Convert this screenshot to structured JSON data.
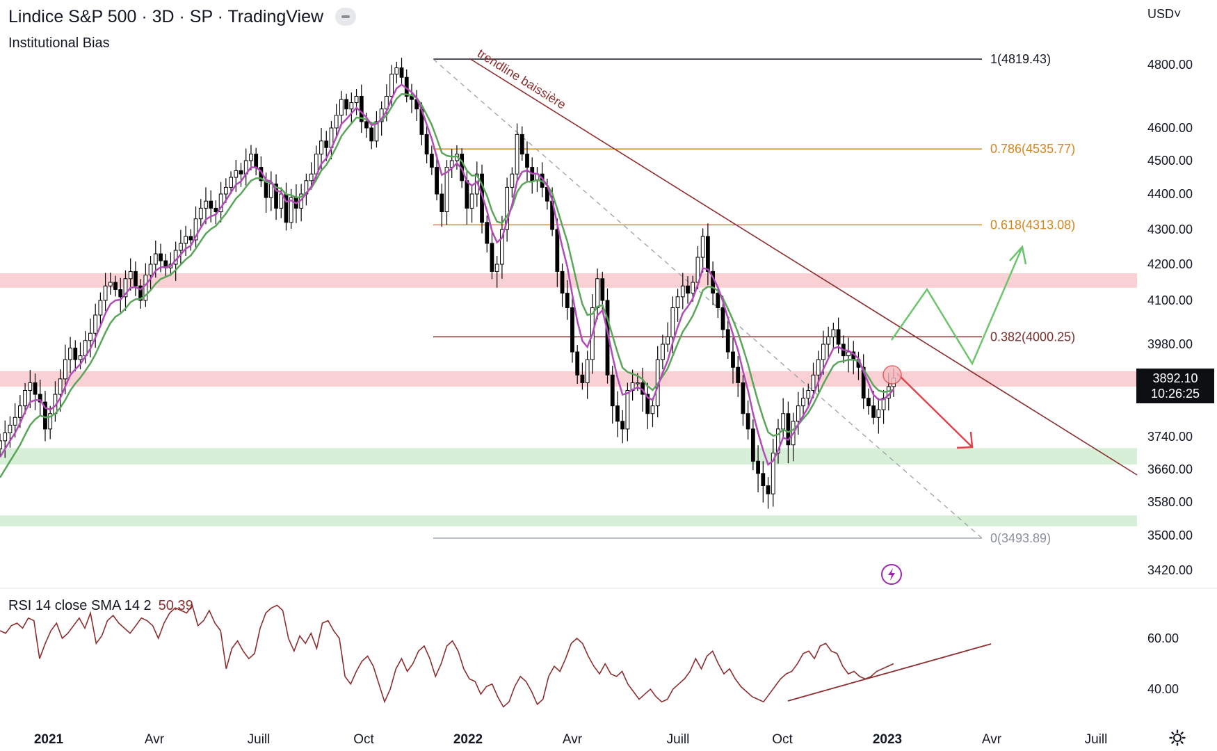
{
  "header": {
    "title": "Lindice S&P 500 · 3D · SP  · TradingView",
    "indicator": "Institutional Bias",
    "currency": "USD˅"
  },
  "rsi_legend": {
    "label": "RSI 14 close SMA 14 2",
    "value": "50.39"
  },
  "price_badge": {
    "price": "3892.10",
    "countdown": "10:26:25"
  },
  "icons": {
    "collapse": "minus-pill-icon",
    "flash": "lightning-icon",
    "settings": "gear-icon"
  },
  "colors": {
    "candle": "#000000",
    "ema_purple": "#b04bb8",
    "ema_green": "#5aa55a",
    "trendline": "#8b2e2e",
    "fib_orange": "#d4871f",
    "fib_0382": "#7a2e2e",
    "resistance_zone": "#f8c9cd",
    "support_zone": "#cfeccf",
    "arrow_up": "#6cc46c",
    "arrow_down": "#e0444c",
    "rsi_line": "#8b2e2e"
  },
  "chart_data": {
    "type": "candlestick",
    "price_axis": {
      "ticks": [
        "4800.00",
        "4600.00",
        "4500.00",
        "4400.00",
        "4300.00",
        "4200.00",
        "4100.00",
        "3980.00",
        "3740.00",
        "3660.00",
        "3580.00",
        "3500.00",
        "3420.00"
      ],
      "tick_values": [
        4800,
        4600,
        4500,
        4400,
        4300,
        4200,
        4100,
        3980,
        3740,
        3660,
        3580,
        3500,
        3420
      ],
      "range": [
        3380,
        4880
      ]
    },
    "rsi_axis": {
      "ticks": [
        "60.00",
        "40.00"
      ],
      "tick_values": [
        60,
        40
      ],
      "range": [
        26,
        76
      ]
    },
    "time_axis": {
      "labels": [
        "2021",
        "Avr",
        "Juill",
        "Oct",
        "2022",
        "Avr",
        "Juill",
        "Oct",
        "2023",
        "Avr",
        "Juill"
      ],
      "bold": [
        true,
        false,
        false,
        false,
        true,
        false,
        false,
        false,
        true,
        false,
        false
      ]
    },
    "fib_levels": [
      {
        "label": "1(4819.43)",
        "value": 4819.43
      },
      {
        "label": "0.786(4535.77)",
        "value": 4535.77
      },
      {
        "label": "0.618(4313.08)",
        "value": 4313.08
      },
      {
        "label": "0.382(4000.25)",
        "value": 4000.25
      },
      {
        "label": "0(3493.89)",
        "value": 3493.89
      }
    ],
    "zones": [
      {
        "kind": "resistance",
        "low": 4135,
        "high": 4175
      },
      {
        "kind": "resistance",
        "low": 3870,
        "high": 3910
      },
      {
        "kind": "support",
        "low": 3672,
        "high": 3712
      },
      {
        "kind": "support",
        "low": 3522,
        "high": 3548
      }
    ],
    "trendline_label": "trendline baissière",
    "candles_close": [
      3730,
      3750,
      3770,
      3790,
      3820,
      3860,
      3880,
      3850,
      3830,
      3760,
      3800,
      3850,
      3890,
      3940,
      3970,
      3940,
      3950,
      3990,
      4010,
      4060,
      4100,
      4140,
      4150,
      4130,
      4110,
      4160,
      4180,
      4140,
      4100,
      4170,
      4200,
      4230,
      4210,
      4190,
      4200,
      4240,
      4260,
      4280,
      4270,
      4330,
      4360,
      4380,
      4360,
      4350,
      4400,
      4420,
      4450,
      4470,
      4460,
      4500,
      4520,
      4480,
      4440,
      4390,
      4430,
      4360,
      4400,
      4320,
      4390,
      4360,
      4400,
      4440,
      4460,
      4520,
      4560,
      4540,
      4600,
      4640,
      4690,
      4660,
      4680,
      4700,
      4620,
      4600,
      4560,
      4620,
      4660,
      4700,
      4770,
      4790,
      4760,
      4700,
      4690,
      4660,
      4580,
      4520,
      4480,
      4400,
      4350,
      4480,
      4500,
      4520,
      4440,
      4360,
      4400,
      4460,
      4320,
      4260,
      4180,
      4200,
      4300,
      4420,
      4460,
      4580,
      4520,
      4480,
      4440,
      4460,
      4420,
      4380,
      4300,
      4180,
      4120,
      4080,
      3960,
      3900,
      3880,
      3940,
      4080,
      4160,
      4100,
      3900,
      3820,
      3780,
      3760,
      3860,
      3880,
      3880,
      3850,
      3800,
      3820,
      3940,
      3980,
      4000,
      4080,
      4110,
      4140,
      4120,
      4150,
      4220,
      4280,
      4180,
      4120,
      4080,
      4020,
      3960,
      3920,
      3880,
      3800,
      3760,
      3680,
      3650,
      3620,
      3600,
      3700,
      3760,
      3800,
      3720,
      3780,
      3820,
      3840,
      3860,
      3900,
      3940,
      3980,
      4000,
      4020,
      3980,
      3950,
      3960,
      3940,
      3920,
      3840,
      3820,
      3790,
      3810,
      3840,
      3870,
      3892
    ],
    "ema_fast": [
      3690,
      3710,
      3730,
      3750,
      3775,
      3805,
      3830,
      3835,
      3835,
      3815,
      3810,
      3820,
      3840,
      3870,
      3900,
      3915,
      3928,
      3948,
      3968,
      3998,
      4030,
      4065,
      4090,
      4100,
      4102,
      4118,
      4135,
      4137,
      4130,
      4143,
      4160,
      4182,
      4192,
      4192,
      4195,
      4212,
      4228,
      4245,
      4253,
      4280,
      4305,
      4328,
      4337,
      4342,
      4362,
      4382,
      4405,
      4428,
      4438,
      4460,
      4480,
      4480,
      4468,
      4442,
      4438,
      4410,
      4406,
      4378,
      4382,
      4374,
      4383,
      4402,
      4422,
      4455,
      4490,
      4507,
      4538,
      4572,
      4612,
      4628,
      4646,
      4664,
      4649,
      4633,
      4609,
      4613,
      4629,
      4653,
      4692,
      4725,
      4737,
      4725,
      4713,
      4695,
      4657,
      4611,
      4567,
      4511,
      4457,
      4465,
      4477,
      4492,
      4475,
      4437,
      4425,
      4437,
      4398,
      4352,
      4295,
      4263,
      4276,
      4324,
      4369,
      4439,
      4466,
      4471,
      4461,
      4461,
      4447,
      4425,
      4383,
      4315,
      4250,
      4193,
      4115,
      4043,
      3989,
      3973,
      4008,
      4059,
      4073,
      4015,
      3950,
      3893,
      3849,
      3853,
      3862,
      3868,
      3862,
      3842,
      3835,
      3870,
      3906,
      3937,
      3985,
      4027,
      4065,
      4083,
      4105,
      4143,
      4189,
      4186,
      4164,
      4136,
      4097,
      4051,
      4007,
      3965,
      3910,
      3860,
      3800,
      3750,
      3707,
      3672,
      3681,
      3707,
      3738,
      3732,
      3748,
      3772,
      3795,
      3817,
      3848,
      3882,
      3915,
      3943,
      3969,
      3973,
      3965,
      3963,
      3955,
      3943,
      3909,
      3879,
      3849,
      3836,
      3837,
      3848,
      3863
    ],
    "ema_slow": [
      3640,
      3660,
      3680,
      3700,
      3720,
      3745,
      3770,
      3785,
      3795,
      3790,
      3792,
      3800,
      3815,
      3835,
      3860,
      3878,
      3893,
      3911,
      3930,
      3954,
      3982,
      4012,
      4038,
      4055,
      4064,
      4078,
      4095,
      4103,
      4104,
      4114,
      4128,
      4146,
      4159,
      4165,
      4171,
      4184,
      4199,
      4214,
      4225,
      4245,
      4267,
      4288,
      4301,
      4310,
      4327,
      4345,
      4366,
      4387,
      4401,
      4421,
      4440,
      4447,
      4447,
      4436,
      4435,
      4420,
      4416,
      4399,
      4397,
      4390,
      4392,
      4404,
      4418,
      4442,
      4470,
      4487,
      4513,
      4542,
      4575,
      4595,
      4614,
      4633,
      4631,
      4627,
      4615,
      4616,
      4624,
      4640,
      4666,
      4692,
      4707,
      4706,
      4703,
      4695,
      4672,
      4642,
      4610,
      4568,
      4524,
      4515,
      4512,
      4513,
      4498,
      4470,
      4455,
      4456,
      4429,
      4395,
      4352,
      4322,
      4318,
      4338,
      4362,
      4406,
      4428,
      4437,
      4437,
      4442,
      4438,
      4427,
      4402,
      4358,
      4311,
      4265,
      4204,
      4143,
      4090,
      4060,
      4063,
      4083,
      4087,
      4050,
      4004,
      3959,
      3919,
      3908,
      3903,
      3898,
      3889,
      3871,
      3861,
      3877,
      3897,
      3917,
      3950,
      3982,
      4014,
      4035,
      4058,
      4090,
      4128,
      4138,
      4136,
      4127,
      4106,
      4077,
      4046,
      4012,
      3970,
      3928,
      3878,
      3831,
      3789,
      3752,
      3742,
      3746,
      3759,
      3752,
      3758,
      3771,
      3787,
      3802,
      3824,
      3850,
      3877,
      3901,
      3924,
      3934,
      3936,
      3940,
      3940,
      3936,
      3915,
      3895,
      3873,
      3860,
      3856,
      3858,
      3862
    ],
    "rsi": [
      63,
      62,
      65,
      66,
      64,
      68,
      67,
      52,
      58,
      63,
      66,
      60,
      62,
      65,
      68,
      64,
      70,
      58,
      61,
      67,
      69,
      66,
      64,
      62,
      65,
      68,
      67,
      65,
      60,
      66,
      70,
      72,
      71,
      70,
      73,
      65,
      67,
      71,
      66,
      63,
      48,
      56,
      59,
      55,
      52,
      54,
      64,
      70,
      72,
      73,
      71,
      60,
      55,
      61,
      58,
      62,
      56,
      66,
      67,
      63,
      60,
      45,
      42,
      47,
      51,
      53,
      49,
      42,
      35,
      40,
      48,
      52,
      47,
      50,
      55,
      57,
      52,
      45,
      50,
      57,
      59,
      55,
      48,
      44,
      43,
      38,
      41,
      42,
      37,
      33,
      35,
      41,
      45,
      43,
      39,
      34,
      36,
      45,
      49,
      47,
      52,
      58,
      60,
      58,
      53,
      49,
      46,
      50,
      46,
      45,
      47,
      42,
      39,
      36,
      38,
      40,
      37,
      35,
      36,
      40,
      42,
      44,
      47,
      52,
      48,
      53,
      55,
      50,
      46,
      48,
      44,
      41,
      39,
      37,
      36,
      35,
      38,
      41,
      44,
      46,
      47,
      50,
      54,
      55,
      52,
      57,
      58,
      55,
      54,
      49,
      46,
      47,
      45,
      44,
      45,
      47,
      48,
      49,
      50
    ]
  }
}
